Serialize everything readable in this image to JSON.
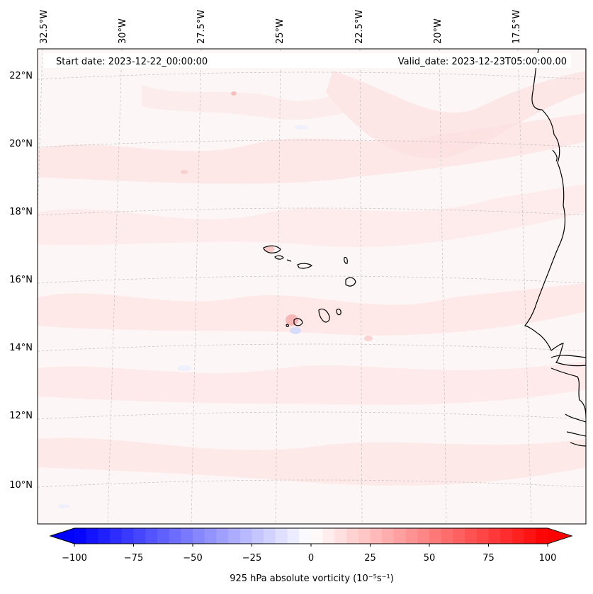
{
  "map": {
    "info": {
      "start_date": "Start date: 2023-12-22_00:00:00",
      "valid_date": "Valid_date: 2023-12-23T05:00:00.00"
    },
    "lon_labels": [
      "32.5°W",
      "30°W",
      "27.5°W",
      "25°W",
      "22.5°W",
      "20°W",
      "17.5°W"
    ],
    "lat_labels": [
      "22°N",
      "20°N",
      "18°N",
      "16°N",
      "14°N",
      "12°N",
      "10°N"
    ],
    "gridlines": true,
    "projection": "conic",
    "field": "925 hPa absolute vorticity"
  },
  "colorbar": {
    "label": "925 hPa absolute vorticity (10⁻⁵s⁻¹)",
    "ticks": [
      "−100",
      "−75",
      "−50",
      "−25",
      "0",
      "25",
      "50",
      "75",
      "100"
    ],
    "min": -100,
    "max": 100,
    "levels": 40,
    "extend": "both",
    "cmap": "bwr",
    "low_color": "#0000ff",
    "mid_color": "#ffffff",
    "high_color": "#ff0000"
  }
}
